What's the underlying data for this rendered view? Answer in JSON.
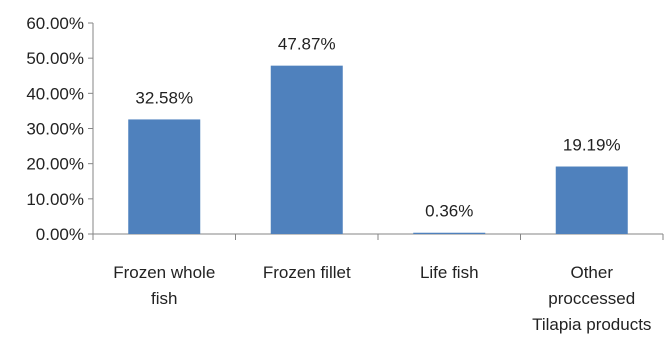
{
  "chart_data": {
    "type": "bar",
    "categories": [
      [
        "Frozen whole",
        "fish"
      ],
      [
        "Frozen fillet"
      ],
      [
        "Life fish"
      ],
      [
        "Other",
        "proccessed",
        "Tilapia products"
      ]
    ],
    "values": [
      32.58,
      47.87,
      0.36,
      19.19
    ],
    "data_labels": [
      "32.58%",
      "47.87%",
      "0.36%",
      "19.19%"
    ],
    "ylim": [
      0,
      60
    ],
    "yticks": [
      0,
      10,
      20,
      30,
      40,
      50,
      60
    ],
    "ytick_labels": [
      "0.00%",
      "10.00%",
      "20.00%",
      "30.00%",
      "40.00%",
      "50.00%",
      "60.00%"
    ],
    "bar_color": "#4f81bd",
    "axis_color": "#868686",
    "grid": false,
    "legend": "none"
  }
}
